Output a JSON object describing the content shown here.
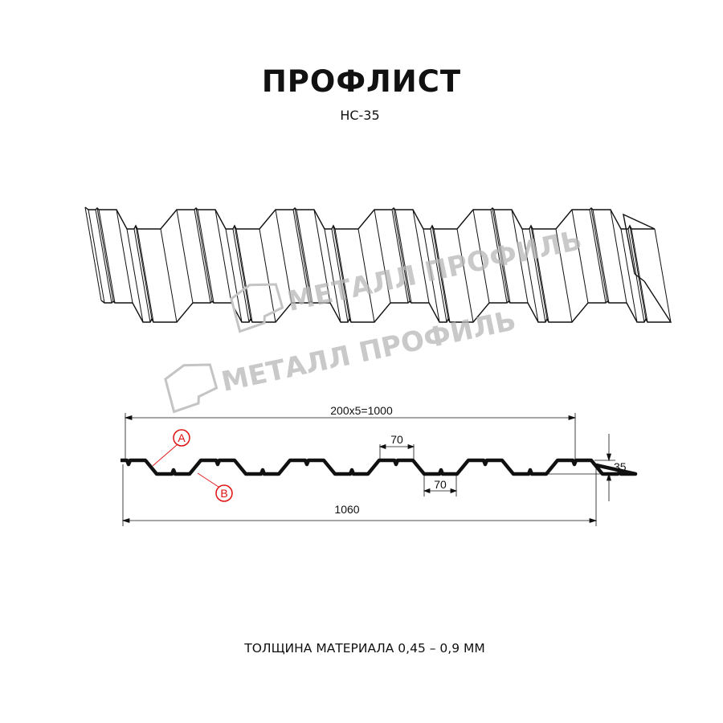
{
  "title": "ПРОФЛИСТ",
  "model": "НС-35",
  "watermark": {
    "logo_text": "МЕТАЛЛ ПРОФИЛЬ"
  },
  "dimensions": {
    "pitch_total": "200x5=1000",
    "overall_width": "1060",
    "top_rib_width": "70",
    "bottom_rib_width": "70",
    "height": "35"
  },
  "markers": {
    "a": "A",
    "b": "B"
  },
  "colors": {
    "line": "#111111",
    "marker": "#e01010",
    "watermark": "#b8b8b8"
  },
  "footer": "ТОЛЩИНА МАТЕРИАЛА 0,45 – 0,9 ММ"
}
